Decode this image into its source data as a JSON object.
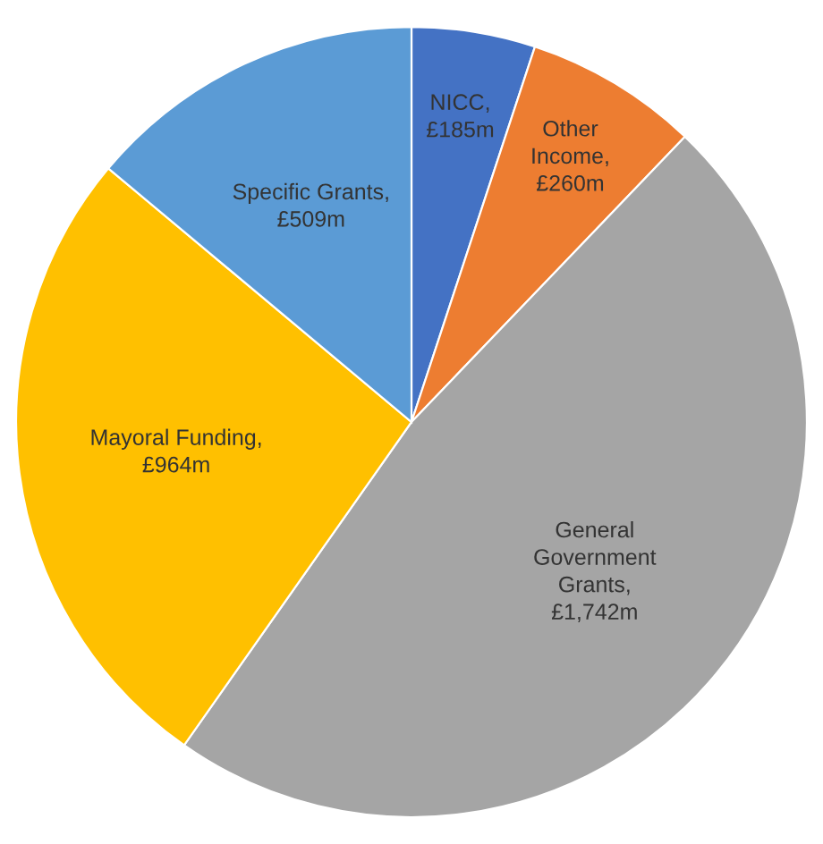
{
  "chart_data": {
    "type": "pie",
    "categories": [
      "NICC, £185m",
      "Other Income, £260m",
      "General Government Grants, £1,742m",
      "Mayoral Funding, £964m",
      "Specific Grants, £509m"
    ],
    "values": [
      185,
      260,
      1742,
      964,
      509
    ],
    "colors": [
      "#4472c4",
      "#ed7d31",
      "#a5a5a5",
      "#ffc000",
      "#5b9bd5"
    ],
    "legend": false
  }
}
